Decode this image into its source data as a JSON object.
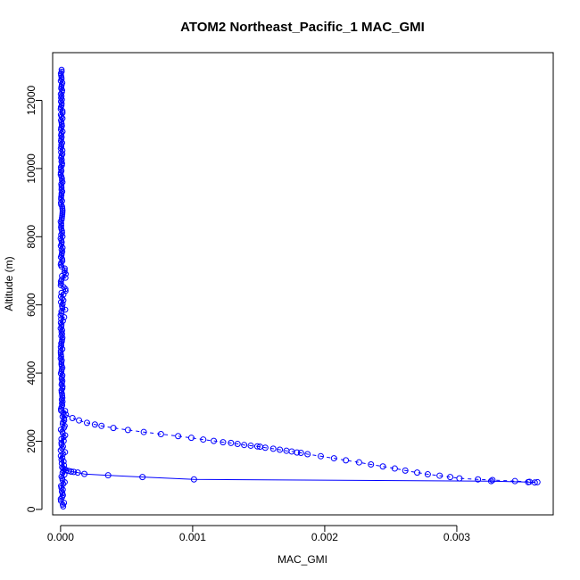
{
  "chart_data": {
    "type": "line",
    "title": "ATOM2 Northeast_Pacific_1 MAC_GMI",
    "xlabel": "MAC_GMI",
    "ylabel": "Altitude (m)",
    "xlim": [
      -6e-05,
      0.00373
    ],
    "ylim": [
      -160,
      13400
    ],
    "x_ticks": [
      0,
      0.001,
      0.002,
      0.003
    ],
    "x_tick_labels": [
      "0.000",
      "0.001",
      "0.002",
      "0.003"
    ],
    "y_ticks": [
      0,
      2000,
      4000,
      6000,
      8000,
      10000,
      12000
    ],
    "y_tick_labels": [
      "0",
      "2000",
      "4000",
      "6000",
      "8000",
      "10000",
      "12000"
    ],
    "grid": false,
    "marker": "open-circle",
    "color": "#0000ff",
    "series": [
      {
        "line_style": "dashed",
        "points": [
          [
            5e-06,
            2900
          ],
          [
            4e-05,
            2780
          ],
          [
            9e-05,
            2680
          ],
          [
            0.00014,
            2610
          ],
          [
            0.0002,
            2540
          ],
          [
            0.00026,
            2490
          ],
          [
            0.00031,
            2450
          ],
          [
            0.0004,
            2390
          ],
          [
            0.00051,
            2330
          ],
          [
            0.00063,
            2270
          ],
          [
            0.00076,
            2210
          ],
          [
            0.00089,
            2150
          ],
          [
            0.00099,
            2100
          ],
          [
            0.00108,
            2050
          ],
          [
            0.00116,
            2010
          ],
          [
            0.00123,
            1970
          ],
          [
            0.00129,
            1950
          ],
          [
            0.00134,
            1920
          ],
          [
            0.00139,
            1890
          ],
          [
            0.00144,
            1870
          ],
          [
            0.00149,
            1850
          ],
          [
            0.00151,
            1840
          ],
          [
            0.00155,
            1810
          ],
          [
            0.00161,
            1780
          ],
          [
            0.00166,
            1750
          ],
          [
            0.00171,
            1720
          ],
          [
            0.00175,
            1700
          ],
          [
            0.00179,
            1670
          ],
          [
            0.00182,
            1660
          ],
          [
            0.00187,
            1620
          ],
          [
            0.00197,
            1560
          ],
          [
            0.00207,
            1500
          ],
          [
            0.00216,
            1440
          ],
          [
            0.00226,
            1380
          ],
          [
            0.00235,
            1320
          ],
          [
            0.00244,
            1260
          ],
          [
            0.00253,
            1200
          ],
          [
            0.00261,
            1140
          ],
          [
            0.0027,
            1080
          ],
          [
            0.00278,
            1030
          ],
          [
            0.00287,
            990
          ],
          [
            0.00295,
            950
          ],
          [
            0.00302,
            910
          ],
          [
            0.00316,
            880
          ],
          [
            0.00327,
            860
          ],
          [
            0.00344,
            830
          ],
          [
            0.00355,
            810
          ],
          [
            0.00361,
            800
          ]
        ]
      },
      {
        "line_style": "solid",
        "points": [
          [
            0.00359,
            790
          ],
          [
            0.00354,
            800
          ],
          [
            0.00326,
            830
          ],
          [
            0.00101,
            880
          ],
          [
            0.00062,
            950
          ],
          [
            0.00036,
            1000
          ],
          [
            0.00018,
            1040
          ],
          [
            0.00013,
            1080
          ],
          [
            0.0001,
            1100
          ],
          [
            8e-05,
            1110
          ],
          [
            6e-05,
            1130
          ],
          [
            4e-05,
            1150
          ],
          [
            2e-05,
            1200
          ]
        ]
      }
    ],
    "near_zero_profile": {
      "altitude_range": [
        50,
        12900
      ],
      "x_range": [
        0.0,
        4.5e-05
      ],
      "note_visible": false
    }
  }
}
